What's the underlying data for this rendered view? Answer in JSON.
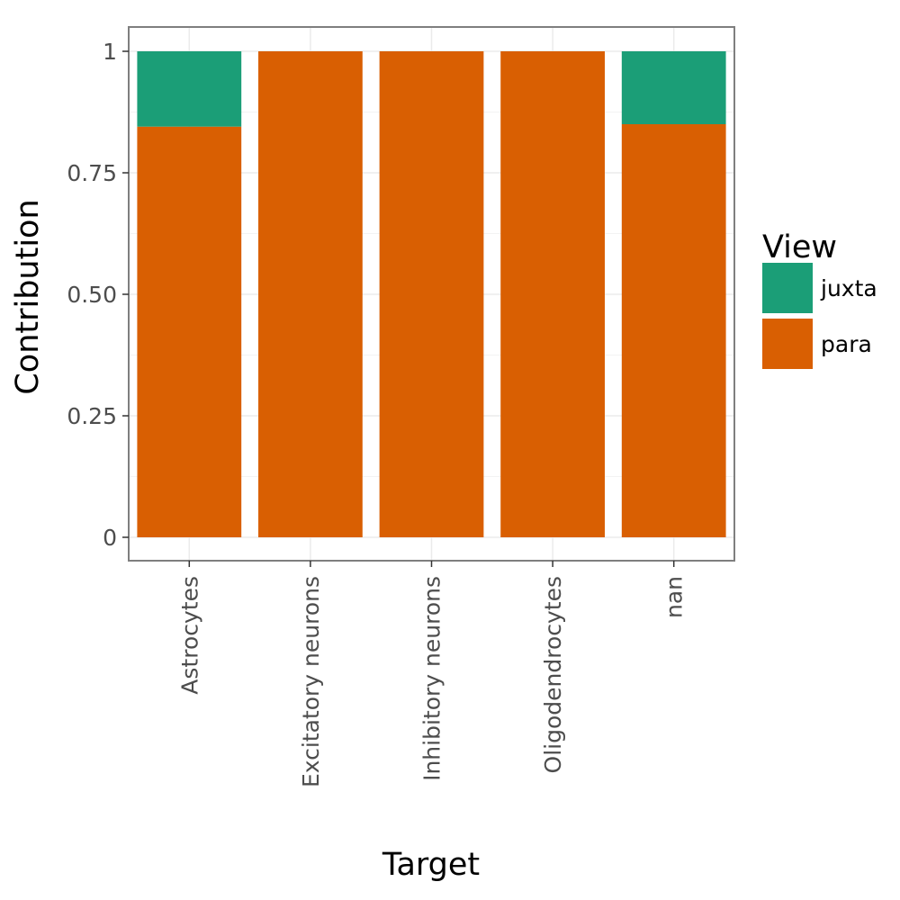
{
  "chart_data": {
    "type": "bar",
    "stacked": true,
    "xlabel": "Target",
    "ylabel": "Contribution",
    "categories": [
      "Astrocytes",
      "Excitatory neurons",
      "Inhibitory neurons",
      "Oligodendrocytes",
      "nan"
    ],
    "series": [
      {
        "name": "juxta",
        "color": "#1b9e77",
        "values": [
          0.155,
          0.0,
          0.0,
          0.0,
          0.15
        ]
      },
      {
        "name": "para",
        "color": "#d95f02",
        "values": [
          0.845,
          1.0,
          1.0,
          1.0,
          0.85
        ]
      }
    ],
    "ylim": [
      -0.05,
      1.05
    ],
    "yticks": [
      0,
      0.25,
      0.5,
      0.75,
      1
    ],
    "ytick_labels": [
      "0",
      "0.25",
      "0.50",
      "0.75",
      "1"
    ],
    "grid": true,
    "legend": {
      "title": "View",
      "placement": "right"
    }
  }
}
